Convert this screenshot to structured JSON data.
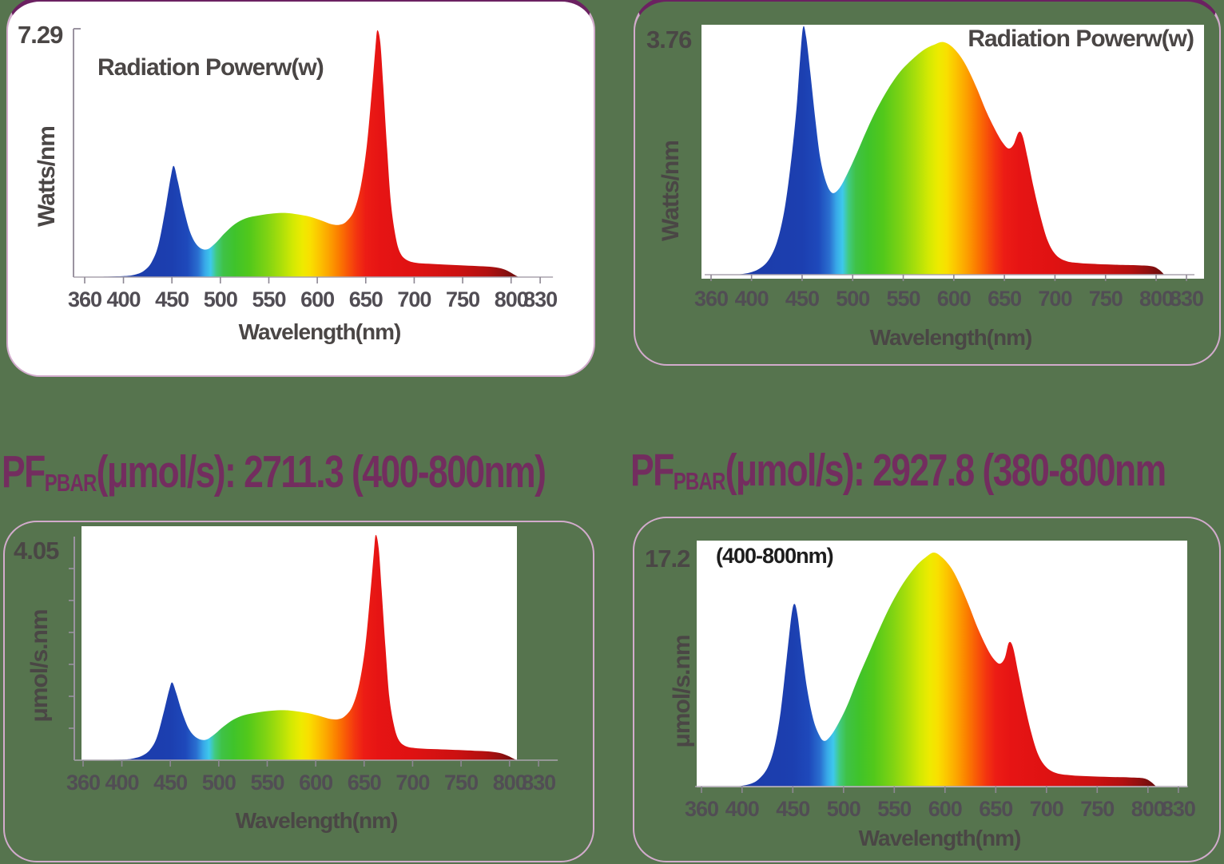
{
  "page": {
    "background": "#56744e",
    "top_border_color": "#6b2161",
    "card_border_color": "#d2abcc",
    "text_color": "#4a4645",
    "tick_color": "#514d54",
    "pf_text_color": "#732d5f"
  },
  "pf_readings": [
    {
      "prefix": "PF",
      "subscript": "PBAR",
      "value_text": "(μmol/s): 2711.3 (400-800nm)"
    },
    {
      "prefix": "PF",
      "subscript": "PBAR",
      "value_text": "(μmol/s): 2927.8 (380-800nm"
    }
  ],
  "spectrum_gradient": [
    [
      360,
      "#1b3aa5"
    ],
    [
      450,
      "#1c3fb0"
    ],
    [
      466,
      "#1e49bb"
    ],
    [
      477,
      "#2a6fd0"
    ],
    [
      484,
      "#38a8e8"
    ],
    [
      490,
      "#3ec9ec"
    ],
    [
      496,
      "#41ca80"
    ],
    [
      503,
      "#3fc247"
    ],
    [
      515,
      "#3fc32b"
    ],
    [
      530,
      "#52c81b"
    ],
    [
      548,
      "#7ed313"
    ],
    [
      562,
      "#a8de0b"
    ],
    [
      575,
      "#d3e903"
    ],
    [
      585,
      "#eeea00"
    ],
    [
      593,
      "#f9df00"
    ],
    [
      602,
      "#fcc400"
    ],
    [
      612,
      "#fca300"
    ],
    [
      622,
      "#fb7d00"
    ],
    [
      632,
      "#f85508"
    ],
    [
      641,
      "#f33310"
    ],
    [
      650,
      "#ec1c15"
    ],
    [
      665,
      "#e61414"
    ],
    [
      700,
      "#df1212"
    ],
    [
      745,
      "#cc1111"
    ],
    [
      775,
      "#b21010"
    ],
    [
      790,
      "#941010"
    ],
    [
      800,
      "#7a0e0e"
    ],
    [
      810,
      "#650c0c"
    ]
  ],
  "chart_data": [
    {
      "type": "area",
      "position": "top-left",
      "title": "Radiation Powerw(w)",
      "annotation": "",
      "max_label": "7.29",
      "y_max": 7.29,
      "ylabel": "Watts/nm",
      "xlabel": "Wavelength(nm)",
      "x_ticks": [
        360,
        400,
        450,
        500,
        550,
        600,
        650,
        700,
        750,
        800,
        830
      ],
      "x_range": [
        360,
        830
      ],
      "points_unit": "fraction_of_max",
      "points": [
        [
          360,
          0
        ],
        [
          400,
          0.004
        ],
        [
          412,
          0.01
        ],
        [
          421,
          0.025
        ],
        [
          429,
          0.06
        ],
        [
          436,
          0.13
        ],
        [
          443,
          0.27
        ],
        [
          449,
          0.41
        ],
        [
          452,
          0.45
        ],
        [
          456,
          0.39
        ],
        [
          462,
          0.28
        ],
        [
          469,
          0.18
        ],
        [
          477,
          0.125
        ],
        [
          486,
          0.112
        ],
        [
          495,
          0.138
        ],
        [
          505,
          0.18
        ],
        [
          515,
          0.215
        ],
        [
          526,
          0.238
        ],
        [
          540,
          0.25
        ],
        [
          555,
          0.258
        ],
        [
          568,
          0.26
        ],
        [
          580,
          0.254
        ],
        [
          593,
          0.244
        ],
        [
          605,
          0.228
        ],
        [
          615,
          0.214
        ],
        [
          623,
          0.212
        ],
        [
          630,
          0.225
        ],
        [
          638,
          0.27
        ],
        [
          645,
          0.37
        ],
        [
          651,
          0.53
        ],
        [
          656,
          0.74
        ],
        [
          660,
          0.93
        ],
        [
          662,
          1.0
        ],
        [
          665,
          0.95
        ],
        [
          668,
          0.78
        ],
        [
          672,
          0.52
        ],
        [
          676,
          0.3
        ],
        [
          681,
          0.16
        ],
        [
          686,
          0.095
        ],
        [
          693,
          0.068
        ],
        [
          702,
          0.058
        ],
        [
          715,
          0.054
        ],
        [
          730,
          0.051
        ],
        [
          748,
          0.048
        ],
        [
          764,
          0.045
        ],
        [
          778,
          0.042
        ],
        [
          790,
          0.035
        ],
        [
          798,
          0.022
        ],
        [
          804,
          0.008
        ],
        [
          808,
          0
        ]
      ]
    },
    {
      "type": "area",
      "position": "top-right",
      "title": "Radiation Powerw(w)",
      "annotation": "",
      "max_label": "3.76",
      "y_max": 3.76,
      "ylabel": "Watts/nm",
      "xlabel": "Wavelength(nm)",
      "x_ticks": [
        360,
        400,
        450,
        500,
        550,
        600,
        650,
        700,
        750,
        800,
        830
      ],
      "x_range": [
        360,
        830
      ],
      "points_unit": "fraction_of_max",
      "points": [
        [
          385,
          0
        ],
        [
          398,
          0.008
        ],
        [
          408,
          0.025
        ],
        [
          417,
          0.06
        ],
        [
          425,
          0.13
        ],
        [
          432,
          0.25
        ],
        [
          438,
          0.42
        ],
        [
          444,
          0.65
        ],
        [
          448,
          0.87
        ],
        [
          451,
          1.0
        ],
        [
          454,
          0.96
        ],
        [
          458,
          0.82
        ],
        [
          463,
          0.63
        ],
        [
          468,
          0.47
        ],
        [
          474,
          0.37
        ],
        [
          480,
          0.33
        ],
        [
          487,
          0.35
        ],
        [
          495,
          0.41
        ],
        [
          504,
          0.49
        ],
        [
          514,
          0.585
        ],
        [
          524,
          0.67
        ],
        [
          535,
          0.75
        ],
        [
          547,
          0.82
        ],
        [
          559,
          0.87
        ],
        [
          571,
          0.91
        ],
        [
          581,
          0.93
        ],
        [
          589,
          0.94
        ],
        [
          597,
          0.925
        ],
        [
          606,
          0.885
        ],
        [
          614,
          0.83
        ],
        [
          623,
          0.75
        ],
        [
          632,
          0.66
        ],
        [
          641,
          0.585
        ],
        [
          648,
          0.535
        ],
        [
          654,
          0.51
        ],
        [
          659,
          0.525
        ],
        [
          664,
          0.575
        ],
        [
          668,
          0.56
        ],
        [
          673,
          0.47
        ],
        [
          679,
          0.35
        ],
        [
          686,
          0.23
        ],
        [
          693,
          0.135
        ],
        [
          701,
          0.08
        ],
        [
          711,
          0.055
        ],
        [
          724,
          0.047
        ],
        [
          742,
          0.043
        ],
        [
          762,
          0.04
        ],
        [
          782,
          0.038
        ],
        [
          796,
          0.034
        ],
        [
          803,
          0.02
        ],
        [
          808,
          0
        ]
      ]
    },
    {
      "type": "area",
      "position": "bottom-left",
      "title": "",
      "annotation": "",
      "max_label": "4.05",
      "y_max": 4.05,
      "ylabel": "μmol/s.nm",
      "xlabel": "Wavelength(nm)",
      "x_ticks": [
        360,
        400,
        450,
        500,
        550,
        600,
        650,
        700,
        750,
        800,
        830
      ],
      "x_range": [
        360,
        830
      ],
      "points_unit": "fraction_of_max",
      "points": [
        [
          360,
          0
        ],
        [
          400,
          0.003
        ],
        [
          412,
          0.008
        ],
        [
          421,
          0.02
        ],
        [
          429,
          0.046
        ],
        [
          436,
          0.1
        ],
        [
          443,
          0.21
        ],
        [
          449,
          0.315
        ],
        [
          452,
          0.345
        ],
        [
          456,
          0.3
        ],
        [
          462,
          0.215
        ],
        [
          469,
          0.14
        ],
        [
          477,
          0.1
        ],
        [
          486,
          0.09
        ],
        [
          495,
          0.113
        ],
        [
          505,
          0.15
        ],
        [
          515,
          0.18
        ],
        [
          526,
          0.2
        ],
        [
          540,
          0.212
        ],
        [
          555,
          0.22
        ],
        [
          568,
          0.222
        ],
        [
          580,
          0.217
        ],
        [
          593,
          0.208
        ],
        [
          605,
          0.195
        ],
        [
          615,
          0.183
        ],
        [
          623,
          0.182
        ],
        [
          630,
          0.195
        ],
        [
          638,
          0.24
        ],
        [
          645,
          0.34
        ],
        [
          651,
          0.5
        ],
        [
          656,
          0.72
        ],
        [
          660,
          0.92
        ],
        [
          662,
          1.0
        ],
        [
          665,
          0.94
        ],
        [
          668,
          0.76
        ],
        [
          672,
          0.5
        ],
        [
          676,
          0.28
        ],
        [
          681,
          0.15
        ],
        [
          686,
          0.088
        ],
        [
          693,
          0.062
        ],
        [
          702,
          0.054
        ],
        [
          715,
          0.05
        ],
        [
          730,
          0.048
        ],
        [
          748,
          0.045
        ],
        [
          764,
          0.042
        ],
        [
          778,
          0.039
        ],
        [
          790,
          0.032
        ],
        [
          798,
          0.02
        ],
        [
          804,
          0.007
        ],
        [
          808,
          0
        ]
      ]
    },
    {
      "type": "area",
      "position": "bottom-right",
      "title": "",
      "annotation": "(400-800nm)",
      "max_label": "17.2",
      "y_max": 17.2,
      "ylabel": "μmol/s.nm",
      "xlabel": "Wavelength(nm)",
      "x_ticks": [
        360,
        400,
        450,
        500,
        550,
        600,
        650,
        700,
        750,
        800,
        830
      ],
      "x_range": [
        360,
        830
      ],
      "points_unit": "fraction_of_max",
      "points": [
        [
          395,
          0
        ],
        [
          407,
          0.01
        ],
        [
          416,
          0.03
        ],
        [
          425,
          0.08
        ],
        [
          432,
          0.17
        ],
        [
          438,
          0.32
        ],
        [
          444,
          0.55
        ],
        [
          449,
          0.74
        ],
        [
          452,
          0.78
        ],
        [
          455,
          0.72
        ],
        [
          459,
          0.58
        ],
        [
          464,
          0.42
        ],
        [
          470,
          0.29
        ],
        [
          476,
          0.22
        ],
        [
          481,
          0.195
        ],
        [
          487,
          0.215
        ],
        [
          495,
          0.27
        ],
        [
          504,
          0.35
        ],
        [
          514,
          0.46
        ],
        [
          524,
          0.56
        ],
        [
          535,
          0.67
        ],
        [
          547,
          0.78
        ],
        [
          559,
          0.87
        ],
        [
          571,
          0.94
        ],
        [
          581,
          0.98
        ],
        [
          589,
          1.0
        ],
        [
          597,
          0.98
        ],
        [
          606,
          0.935
        ],
        [
          614,
          0.87
        ],
        [
          623,
          0.78
        ],
        [
          632,
          0.68
        ],
        [
          641,
          0.595
        ],
        [
          648,
          0.545
        ],
        [
          654,
          0.525
        ],
        [
          659,
          0.55
        ],
        [
          663,
          0.615
        ],
        [
          667,
          0.595
        ],
        [
          672,
          0.49
        ],
        [
          678,
          0.36
        ],
        [
          685,
          0.23
        ],
        [
          692,
          0.135
        ],
        [
          700,
          0.082
        ],
        [
          710,
          0.057
        ],
        [
          724,
          0.048
        ],
        [
          742,
          0.044
        ],
        [
          762,
          0.041
        ],
        [
          782,
          0.039
        ],
        [
          796,
          0.035
        ],
        [
          803,
          0.02
        ],
        [
          808,
          0
        ]
      ]
    }
  ]
}
